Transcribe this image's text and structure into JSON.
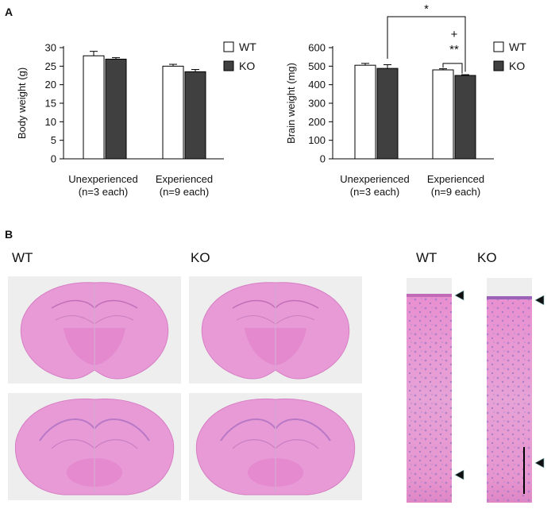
{
  "panel_a_label": "A",
  "panel_b_label": "B",
  "chart_data": [
    {
      "type": "bar",
      "ylabel": "Body weight (g)",
      "ylim": [
        0,
        30
      ],
      "yticks": [
        0,
        5,
        10,
        15,
        20,
        25,
        30
      ],
      "categories": [
        "Unexperienced\n(n=3 each)",
        "Experienced\n(n=9 each)"
      ],
      "series": [
        {
          "name": "WT",
          "color": "#ffffff",
          "values": [
            27.8,
            25.0
          ],
          "errors": [
            1.2,
            0.5
          ]
        },
        {
          "name": "KO",
          "color": "#404040",
          "values": [
            26.9,
            23.5
          ],
          "errors": [
            0.4,
            0.6
          ]
        }
      ],
      "legend": "top-right",
      "grid": false
    },
    {
      "type": "bar",
      "ylabel": "Brain weight (mg)",
      "ylim": [
        0,
        600
      ],
      "yticks": [
        0,
        50,
        100,
        150,
        200,
        250,
        300,
        350,
        400,
        450,
        500,
        550,
        600
      ],
      "categories": [
        "Unexperienced\n(n=3 each)",
        "Experienced\n(n=9 each)"
      ],
      "series": [
        {
          "name": "WT",
          "color": "#ffffff",
          "values": [
            505,
            480
          ],
          "errors": [
            10,
            6
          ]
        },
        {
          "name": "KO",
          "color": "#404040",
          "values": [
            488,
            450
          ],
          "errors": [
            20,
            4
          ]
        }
      ],
      "annotations": [
        {
          "text": "*",
          "between": "KO Unexperienced - KO Experienced"
        },
        {
          "text": "+",
          "between": "WT Experienced - KO Experienced"
        },
        {
          "text": "**",
          "between": "WT Experienced - KO Experienced"
        }
      ],
      "legend": "top-right",
      "grid": false
    }
  ],
  "panel_b": {
    "left_titles": [
      "WT",
      "KO"
    ],
    "right_titles": [
      "WT",
      "KO"
    ]
  }
}
